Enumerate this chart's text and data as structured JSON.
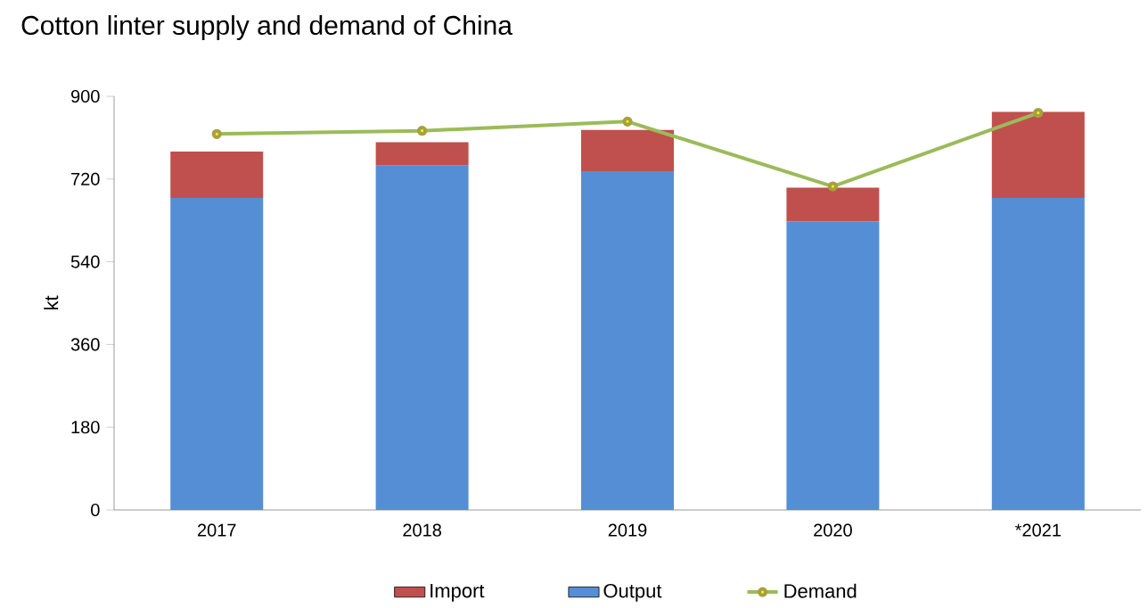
{
  "chart_data": {
    "type": "bar",
    "title": "Cotton linter supply and demand of China",
    "ylabel": "kt",
    "categories": [
      "2017",
      "2018",
      "2019",
      "2020",
      "*2021"
    ],
    "stacked": true,
    "legend": "bottom",
    "grid": false,
    "ylim": [
      0,
      900
    ],
    "yticks": [
      0,
      180,
      360,
      540,
      720,
      900
    ],
    "series": [
      {
        "name": "Output",
        "color": "#558ed5",
        "values": [
          679,
          749,
          737,
          628,
          679
        ]
      },
      {
        "name": "Import",
        "color": "#c0504d",
        "values": [
          101,
          51,
          90,
          73,
          187
        ]
      },
      {
        "name": "Demand",
        "type": "line",
        "color": "#9bbb59",
        "marker": "circle",
        "values": [
          818,
          825,
          845,
          704,
          864
        ]
      }
    ]
  }
}
